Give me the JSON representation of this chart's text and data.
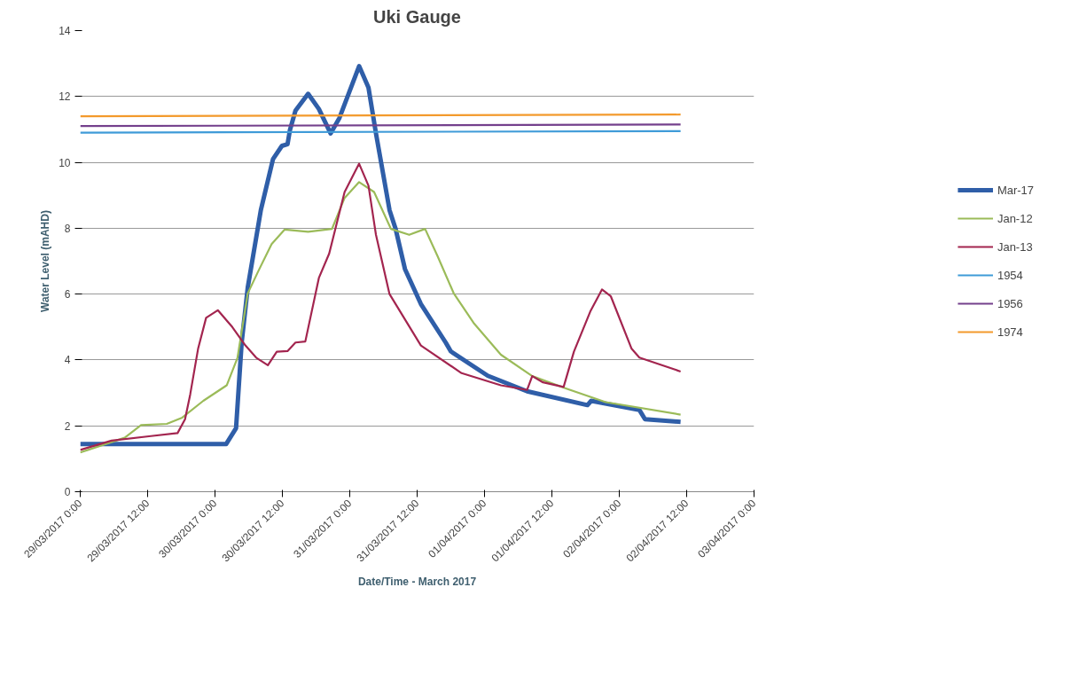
{
  "chart_data": {
    "type": "line",
    "title": "Uki Gauge",
    "xlabel": "Date/Time - March 2017",
    "ylabel": "Water Level (mAHD)",
    "xlim": [
      "2017-03-29T00:00",
      "2017-04-03T00:00"
    ],
    "xticks": [
      {
        "value": "2017-03-29T00:00",
        "label": "29/03/2017 0:00"
      },
      {
        "value": "2017-03-29T12:00",
        "label": "29/03/2017 12:00"
      },
      {
        "value": "2017-03-30T00:00",
        "label": "30/03/2017 0:00"
      },
      {
        "value": "2017-03-30T12:00",
        "label": "30/03/2017 12:00"
      },
      {
        "value": "2017-03-31T00:00",
        "label": "31/03/2017 0:00"
      },
      {
        "value": "2017-03-31T12:00",
        "label": "31/03/2017 12:00"
      },
      {
        "value": "2017-04-01T00:00",
        "label": "01/04/2017 0:00"
      },
      {
        "value": "2017-04-01T12:00",
        "label": "01/04/2017 12:00"
      },
      {
        "value": "2017-04-02T00:00",
        "label": "02/04/2017 0:00"
      },
      {
        "value": "2017-04-02T12:00",
        "label": "02/04/2017 12:00"
      },
      {
        "value": "2017-04-03T00:00",
        "label": "03/04/2017 0:00"
      }
    ],
    "ylim": [
      0,
      14
    ],
    "yticks": [
      0,
      2,
      4,
      6,
      8,
      10,
      12,
      14
    ],
    "grid": "y",
    "legend": "right",
    "marker": "none",
    "line_style": "solid",
    "series": [
      {
        "name": "Mar-17",
        "color": "#2f5ea8",
        "x": [
          "2017-03-29T00:00",
          "2017-03-30T02:00",
          "2017-03-30T03:45",
          "2017-03-30T04:45",
          "2017-03-30T05:50",
          "2017-03-30T08:10",
          "2017-03-30T10:20",
          "2017-03-30T11:55",
          "2017-03-30T12:55",
          "2017-03-30T13:20",
          "2017-03-30T14:20",
          "2017-03-30T16:35",
          "2017-03-30T18:30",
          "2017-03-30T20:35",
          "2017-03-30T22:10",
          "2017-03-31T01:40",
          "2017-03-31T03:20",
          "2017-03-31T04:40",
          "2017-03-31T07:05",
          "2017-03-31T08:10",
          "2017-03-31T09:50",
          "2017-03-31T12:40",
          "2017-03-31T17:05",
          "2017-03-31T18:00",
          "2017-04-01T00:35",
          "2017-04-01T07:35",
          "2017-04-01T18:20",
          "2017-04-01T19:00",
          "2017-04-02T03:35",
          "2017-04-02T04:35",
          "2017-04-02T10:55"
        ],
        "values": [
          1.45,
          1.45,
          1.93,
          4.53,
          6.2,
          8.55,
          10.1,
          10.5,
          10.55,
          10.97,
          11.57,
          12.08,
          11.62,
          10.88,
          11.35,
          12.92,
          12.27,
          10.88,
          8.55,
          7.98,
          6.76,
          5.7,
          4.53,
          4.26,
          3.52,
          3.05,
          2.63,
          2.76,
          2.48,
          2.2,
          2.12
        ]
      },
      {
        "name": "Jan-12",
        "color": "#9bbb59",
        "x": [
          "2017-03-29T00:00",
          "2017-03-29T07:55",
          "2017-03-29T10:50",
          "2017-03-29T15:25",
          "2017-03-29T18:10",
          "2017-03-29T21:55",
          "2017-03-30T02:05",
          "2017-03-30T04:00",
          "2017-03-30T05:50",
          "2017-03-30T07:40",
          "2017-03-30T10:05",
          "2017-03-30T12:25",
          "2017-03-30T16:35",
          "2017-03-30T20:50",
          "2017-03-30T23:05",
          "2017-03-31T01:40",
          "2017-03-31T04:20",
          "2017-03-31T07:20",
          "2017-03-31T10:35",
          "2017-03-31T13:25",
          "2017-03-31T15:40",
          "2017-03-31T18:30",
          "2017-03-31T22:10",
          "2017-04-01T02:55",
          "2017-04-01T08:30",
          "2017-04-01T14:35",
          "2017-04-01T21:35",
          "2017-04-02T10:55"
        ],
        "values": [
          1.19,
          1.64,
          2.02,
          2.06,
          2.25,
          2.76,
          3.23,
          4.06,
          6.02,
          6.68,
          7.52,
          7.96,
          7.89,
          7.98,
          8.92,
          9.4,
          9.1,
          7.98,
          7.8,
          7.98,
          7.14,
          6.03,
          5.1,
          4.16,
          3.51,
          3.13,
          2.72,
          2.34
        ]
      },
      {
        "name": "Jan-13",
        "color": "#a3254f",
        "x": [
          "2017-03-29T00:00",
          "2017-03-29T05:35",
          "2017-03-29T12:35",
          "2017-03-29T17:20",
          "2017-03-29T18:40",
          "2017-03-29T19:35",
          "2017-03-29T21:00",
          "2017-03-29T22:25",
          "2017-03-30T00:30",
          "2017-03-30T03:05",
          "2017-03-30T05:25",
          "2017-03-30T07:20",
          "2017-03-30T09:25",
          "2017-03-30T11:00",
          "2017-03-30T12:55",
          "2017-03-30T14:20",
          "2017-03-30T16:05",
          "2017-03-30T18:30",
          "2017-03-30T20:20",
          "2017-03-30T23:05",
          "2017-03-31T01:40",
          "2017-03-31T03:20",
          "2017-03-31T04:40",
          "2017-03-31T07:05",
          "2017-03-31T12:40",
          "2017-03-31T19:55",
          "2017-04-01T02:55",
          "2017-04-01T07:35",
          "2017-04-01T08:30",
          "2017-04-01T10:25",
          "2017-04-01T14:05",
          "2017-04-01T15:55",
          "2017-04-01T18:50",
          "2017-04-01T20:55",
          "2017-04-01T22:30",
          "2017-04-02T02:10",
          "2017-04-02T03:35",
          "2017-04-02T10:55"
        ],
        "values": [
          1.27,
          1.55,
          1.69,
          1.78,
          2.2,
          2.95,
          4.35,
          5.28,
          5.51,
          5.0,
          4.44,
          4.07,
          3.84,
          4.25,
          4.27,
          4.53,
          4.56,
          6.49,
          7.23,
          9.1,
          9.96,
          9.29,
          7.8,
          6.0,
          4.44,
          3.6,
          3.23,
          3.09,
          3.51,
          3.32,
          3.18,
          4.25,
          5.47,
          6.14,
          5.93,
          4.35,
          4.07,
          3.65
        ]
      },
      {
        "name": "1954",
        "color": "#3f9bd8",
        "x": [
          "2017-03-29T00:00",
          "2017-04-02T10:55"
        ],
        "values": [
          10.9,
          10.95
        ]
      },
      {
        "name": "1956",
        "color": "#74408c",
        "x": [
          "2017-03-29T00:00",
          "2017-04-02T10:55"
        ],
        "values": [
          11.1,
          11.15
        ]
      },
      {
        "name": "1974",
        "color": "#f39a2c",
        "x": [
          "2017-03-29T00:00",
          "2017-04-02T10:55"
        ],
        "values": [
          11.4,
          11.45
        ]
      }
    ]
  }
}
